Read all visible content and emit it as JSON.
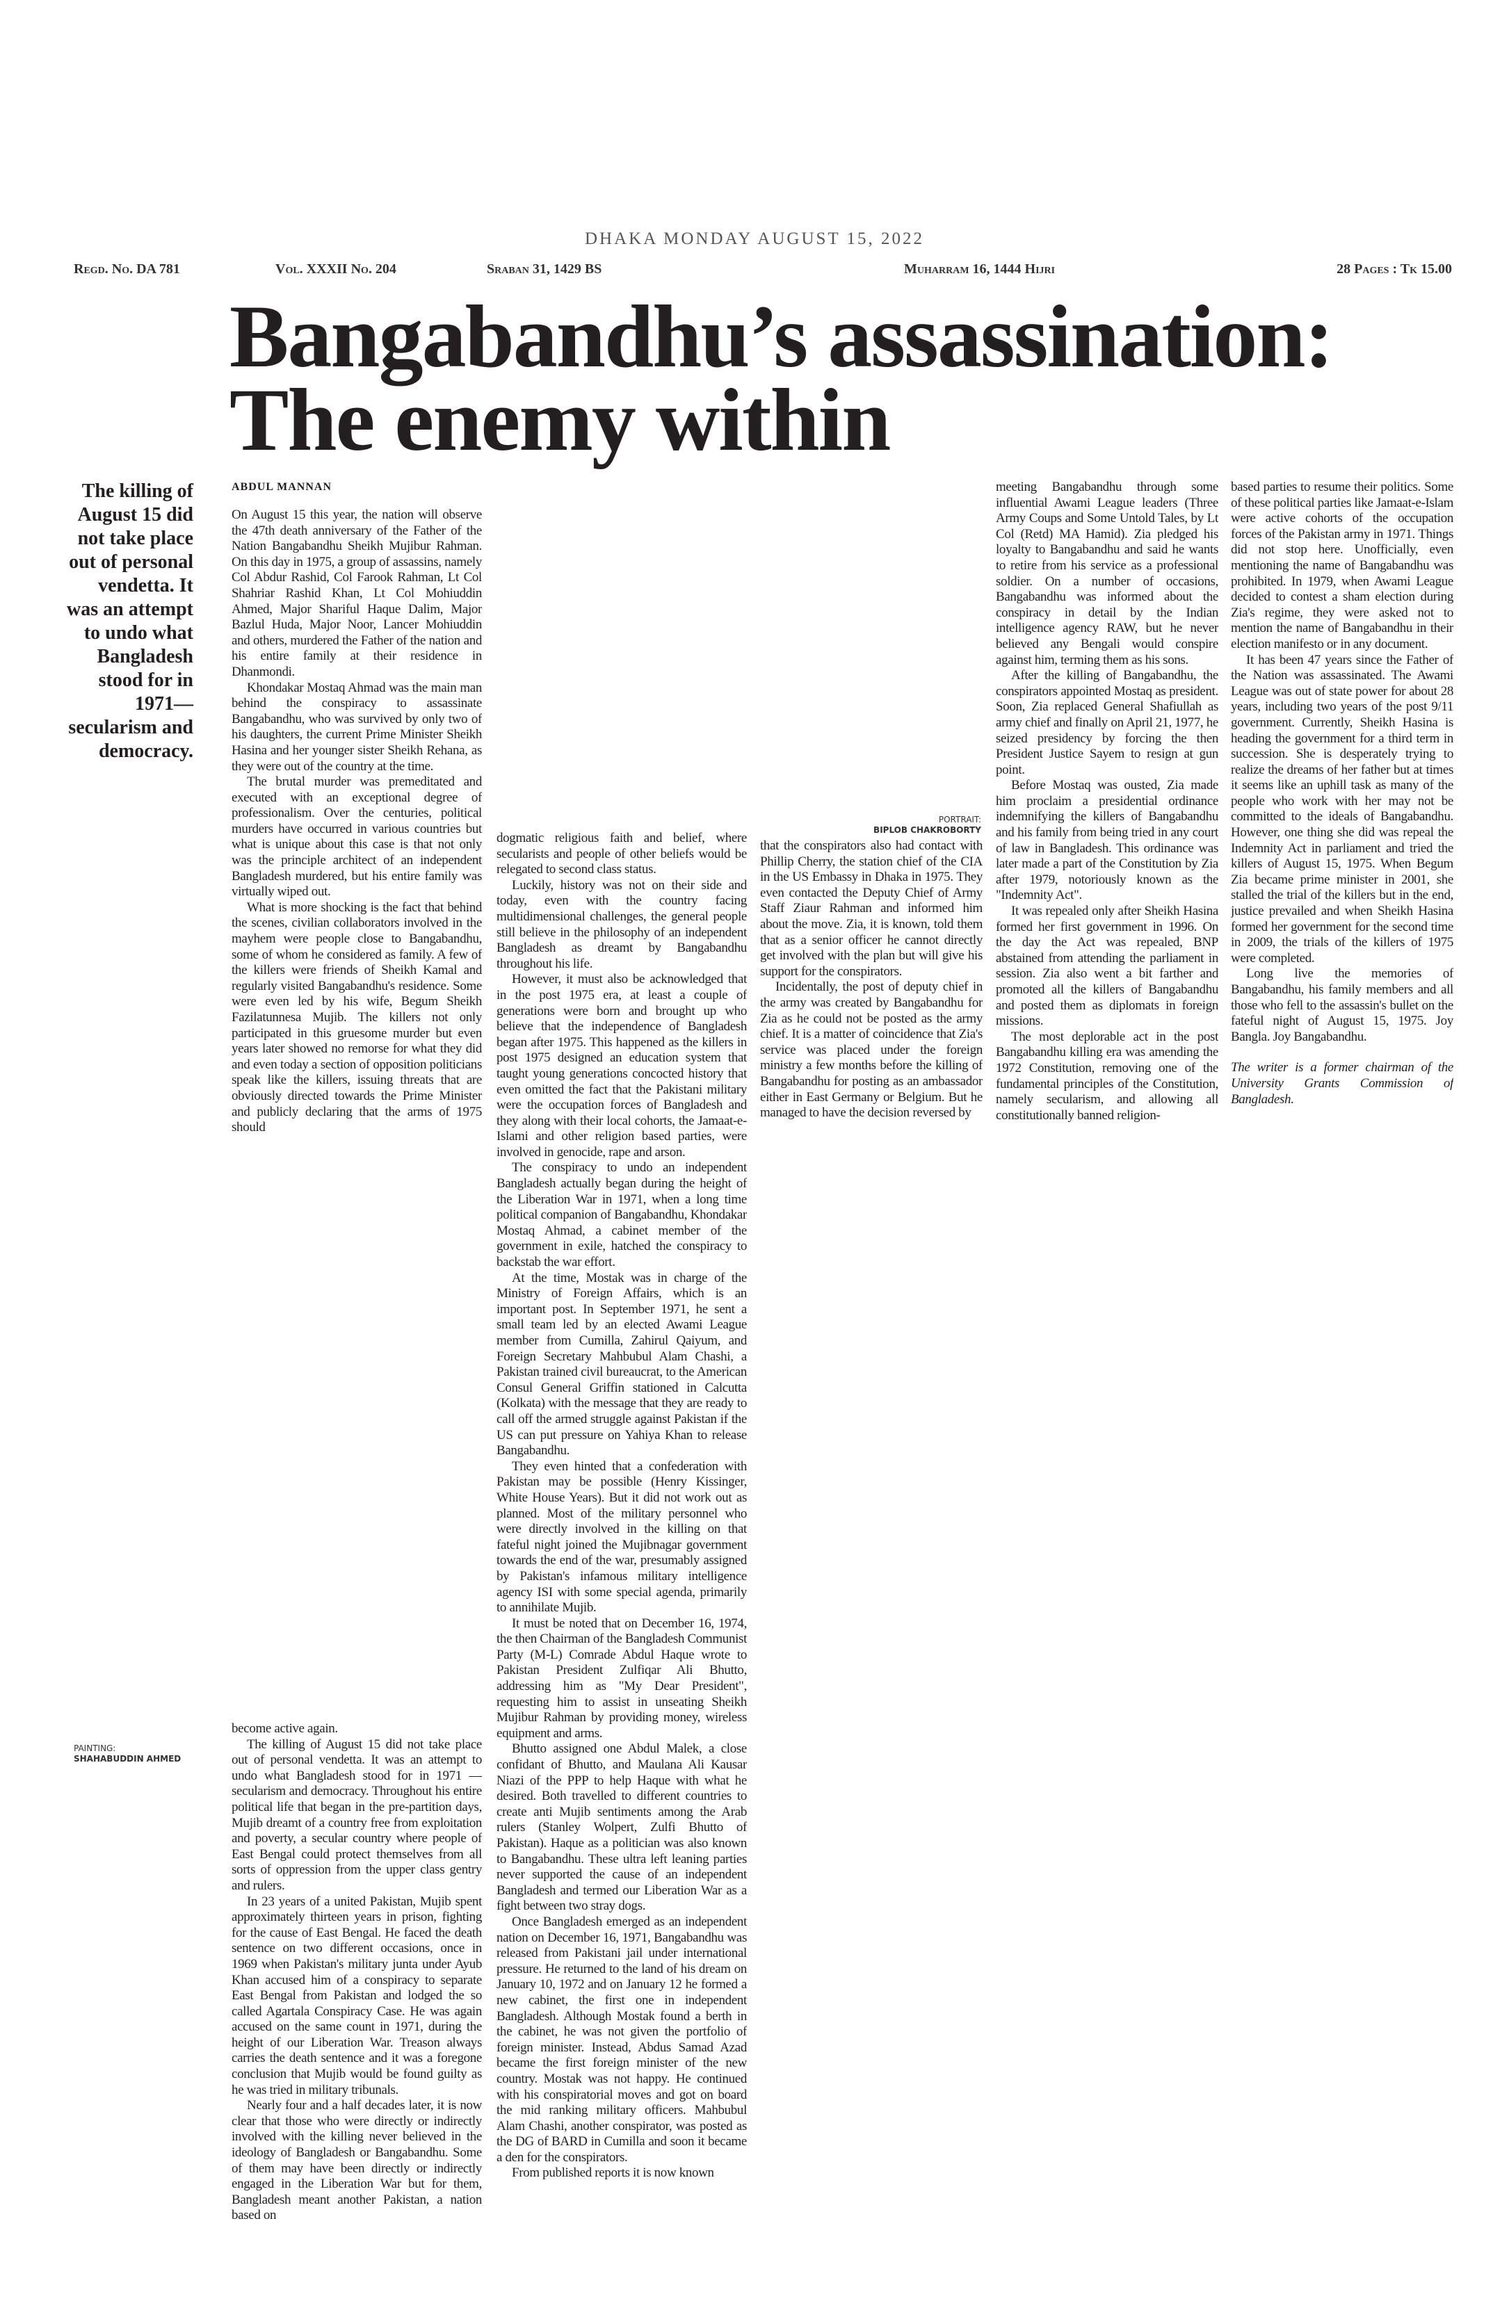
{
  "header": {
    "dateline": "DHAKA MONDAY AUGUST 15, 2022",
    "regd": "Regd. No. DA 781",
    "volume": "Vol. XXXII No. 204",
    "bangla_date": "Sraban 31, 1429 BS",
    "hijri_date": "Muharram 16, 1444 Hijri",
    "pages_price": "28 Pages : Tk 15.00"
  },
  "headline": [
    "Bangabandhu’s assassination:",
    "The enemy within"
  ],
  "pull_quote": "The killing of August 15 did not take place out of personal vendetta. It was an attempt to undo what Bangladesh stood for in 1971—secularism and democracy.",
  "painting_credit": {
    "label": "PAINTING:",
    "name": "SHAHABUDDIN AHMED"
  },
  "portrait_credit": {
    "label": "PORTRAIT:",
    "name": "BIPLOB CHAKROBORTY"
  },
  "byline": "ABDUL MANNAN",
  "columns": [
    [
      "On August 15 this year, the nation will observe the 47th death anniversary of the Father of the Nation Bangabandhu Sheikh Mujibur Rahman. On this day in 1975, a group of assassins, namely Col Abdur Rashid, Col Farook Rahman, Lt Col Shahriar Rashid Khan, Lt Col Mohiuddin Ahmed, Major Shariful Haque Dalim, Major Bazlul Huda, Major Noor, Lancer Mohiuddin and others, murdered the Father of the nation and his entire family at their residence in Dhanmondi.",
      "Khondakar Mostaq Ahmad was the main man behind the conspiracy to assassinate Bangabandhu, who was survived by only two of his daughters, the current Prime Minister Sheikh Hasina and her younger sister Sheikh Rehana, as they were out of the country at the time.",
      "The brutal murder was premeditated and executed with an exceptional degree of professionalism. Over the centuries, political murders have occurred in various countries but what is unique about this case is that not only was the principle architect of an independent Bangladesh murdered, but his entire family was virtually wiped out.",
      "What is more shocking is the fact that behind the scenes, civilian collaborators involved in the mayhem were people close to Bangabandhu, some of whom he considered as family. A few of the killers were friends of Sheikh Kamal and regularly visited Bangabandhu's residence. Some were even led by his wife, Begum Sheikh Fazilatunnesa Mujib. The killers not only participated in this gruesome murder but even years later showed no remorse for what they did and even today a section of opposition politicians speak like the killers, issuing threats that are obviously directed towards the Prime Minister and publicly declaring that the arms of 1975 should"
    ],
    [
      "become active again.",
      "The killing of August 15 did not take place out of personal vendetta. It was an attempt to undo what Bangladesh stood for in 1971 — secularism and democracy. Throughout his entire political life that began in the pre-partition days, Mujib dreamt of a country free from exploitation and poverty, a secular country where people of East Bengal could protect themselves from all sorts of oppression from the upper class gentry and rulers.",
      "In 23 years of a united Pakistan, Mujib spent approximately thirteen years in prison, fighting for the cause of East Bengal. He faced the death sentence on two different occasions, once in 1969 when Pakistan's military junta under Ayub Khan accused him of a conspiracy to separate East Bengal from Pakistan and lodged the so called Agartala Conspiracy Case. He was again accused on the same count in 1971, during the height of our Liberation War. Treason always carries the death sentence and it was a foregone conclusion that Mujib would be found guilty as he was tried in military tribunals.",
      "Nearly four and a half decades later, it is now clear that those who were directly or indirectly involved with the killing never believed in the ideology of Bangladesh or Bangabandhu. Some of them may have been directly or indirectly engaged in the Liberation War but for them, Bangladesh meant another Pakistan, a nation based on"
    ],
    [
      "dogmatic religious faith and belief, where secularists and people of other beliefs would be relegated to second class status.",
      "Luckily, history was not on their side and today, even with the country facing multidimensional challenges, the general people still believe in the philosophy of an independent Bangladesh as dreamt by Bangabandhu throughout his life.",
      "However, it must also be acknowledged that in the post 1975 era, at least a couple of generations were born and brought up who believe that the independence of Bangladesh began after 1975. This happened as the killers in post 1975 designed an education system that taught young generations concocted history that even omitted the fact that the Pakistani military were the occupation forces of Bangladesh and they along with their local cohorts, the Jamaat-e-Islami and other religion based parties, were involved in genocide, rape and arson.",
      "The conspiracy to undo an independent Bangladesh actually began during the height of the Liberation War in 1971, when a long time political companion of Bangabandhu, Khondakar Mostaq Ahmad, a cabinet member of the government in exile, hatched the conspiracy to backstab the war effort.",
      "At the time, Mostak was in charge of the Ministry of Foreign Affairs, which is an important post. In September 1971, he sent a small team led by an elected Awami League member from Cumilla, Zahirul Qaiyum, and Foreign Secretary Mahbubul Alam Chashi, a Pakistan trained civil bureaucrat, to the American Consul General Griffin stationed in Calcutta (Kolkata) with the message that they are ready to call off the armed struggle against Pakistan if the US can put pressure on Yahiya Khan to release Bangabandhu.",
      "They even hinted that a confederation with Pakistan may be possible (Henry Kissinger, White House Years). But it did not work out as planned. Most of the military personnel who were directly involved in the killing on that fateful night joined the Mujibnagar government towards the end of the war, presumably assigned by Pakistan's infamous military intelligence agency ISI with some special agenda, primarily to annihilate Mujib.",
      "It must be noted that on December 16, 1974, the then Chairman of the Bangladesh Communist Party (M-L) Comrade Abdul Haque wrote to Pakistan President Zulfiqar Ali Bhutto, addressing him as \"My Dear President\", requesting him to assist in unseating Sheikh Mujibur Rahman by providing money, wireless equipment and arms.",
      "Bhutto assigned one Abdul Malek, a close confidant of Bhutto, and Maulana Ali Kausar Niazi of the PPP to help Haque with what he desired. Both travelled to different countries to create anti Mujib sentiments among the Arab rulers (Stanley Wolpert, Zulfi Bhutto of Pakistan). Haque as a politician was also known to Bangabandhu. These ultra left leaning parties never supported the cause of an independent Bangladesh and termed our Liberation War as a fight between two stray dogs.",
      "Once Bangladesh emerged as an independent nation on December 16, 1971, Bangabandhu was released from Pakistani jail under international pressure. He returned to the land of his dream on January 10, 1972 and on January 12 he formed a new cabinet, the first one in independent Bangladesh. Although Mostak found a berth in the cabinet, he was not given the portfolio of foreign minister. Instead, Abdus Samad Azad became the first foreign minister of the new country. Mostak was not happy. He continued with his conspiratorial moves and got on board the mid ranking military officers. Mahbubul Alam Chashi, another conspirator, was posted as the DG of BARD in Cumilla and soon it became a den for the conspirators.",
      "From published reports it is now known"
    ],
    [
      "that the conspirators also had contact with Phillip Cherry, the station chief of the CIA in the US Embassy in Dhaka in 1975. They even contacted the Deputy Chief of Army Staff Ziaur Rahman and informed him about the move. Zia, it is known, told them that as a senior officer he cannot directly get involved with the plan but will give his support for the conspirators.",
      "Incidentally, the post of deputy chief in the army was created by Bangabandhu for Zia as he could not be posted as the army chief. It is a matter of coincidence that Zia's service was placed under the foreign ministry a few months before the killing of Bangabandhu for posting as an ambassador either in East Germany or Belgium. But he managed to have the decision reversed by"
    ],
    [
      "meeting Bangabandhu through some influential Awami League leaders (Three Army Coups and Some Untold Tales, by Lt Col (Retd) MA Hamid). Zia pledged his loyalty to Bangabandhu and said he wants to retire from his service as a professional soldier. On a number of occasions, Bangabandhu was informed about the conspiracy in detail by the Indian intelligence agency RAW, but he never believed any Bengali would conspire against him, terming them as his sons.",
      "After the killing of Bangabandhu, the conspirators appointed Mostaq as president. Soon, Zia replaced General Shafiullah as army chief and finally on April 21, 1977, he seized presidency by forcing the then President Justice Sayem to resign at gun point.",
      "Before Mostaq was ousted, Zia made him proclaim a presidential ordinance indemnifying the killers of Bangabandhu and his family from being tried in any court of law in Bangladesh. This ordinance was later made a part of the Constitution by Zia after 1979, notoriously known as the \"Indemnity Act\".",
      "It was repealed only after Sheikh Hasina formed her first government in 1996. On the day the Act was repealed, BNP abstained from attending the parliament in session. Zia also went a bit farther and promoted all the killers of Bangabandhu and posted them as diplomats in foreign missions.",
      "The most deplorable act in the post Bangabandhu killing era was amending the 1972 Constitution, removing one of the fundamental principles of the Constitution, namely secularism, and allowing all constitutionally banned religion-"
    ],
    [
      "based parties to resume their politics. Some of these political parties like Jamaat-e-Islam were active cohorts of the occupation forces of the Pakistan army in 1971. Things did not stop here. Unofficially, even mentioning the name of Bangabandhu was prohibited. In 1979, when Awami League decided to contest a sham election during Zia's regime, they were asked not to mention the name of Bangabandhu in their election manifesto or in any document.",
      "It has been 47 years since the Father of the Nation was assassinated. The Awami League was out of state power for about 28 years, including two years of the post 9/11 government. Currently, Sheikh Hasina is heading the government for a third term in succession. She is desperately trying to realize the dreams of her father but at times it seems like an uphill task as many of the people who work with her may not be committed to the ideals of Bangabandhu. However, one thing she did was repeal the Indemnity Act in parliament and tried the killers of August 15, 1975. When Begum Zia became prime minister in 2001, she stalled the trial of the killers but in the end, justice prevailed and when Sheikh Hasina formed her government for the second time in 2009, the trials of the killers of 1975 were completed.",
      "Long live the memories of Bangabandhu, his family members and all those who fell to the assassin's bullet on the fateful night of August 15, 1975. Joy Bangla. Joy Bangabandhu."
    ]
  ],
  "writer_note": "The writer is a former chairman of the University Grants Commission of Bangladesh."
}
